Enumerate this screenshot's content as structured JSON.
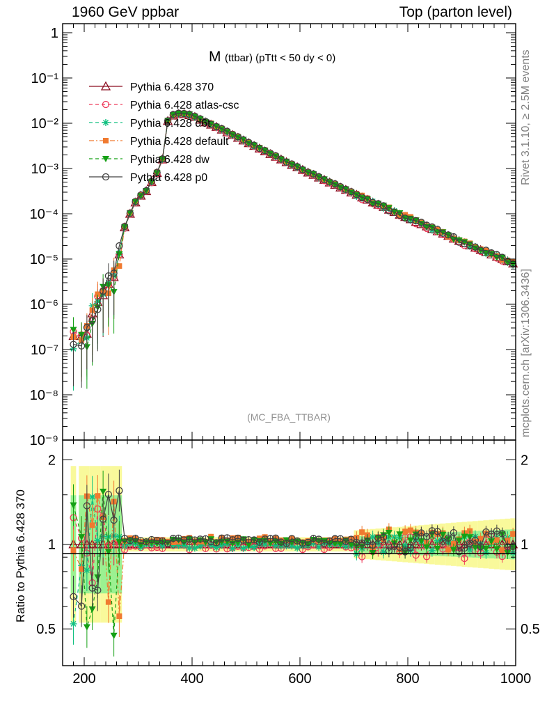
{
  "header": {
    "left": "1960 GeV ppbar",
    "right": "Top (parton level)"
  },
  "side_labels": {
    "rivet": "Rivet 3.1.10, ≥ 2.5M events",
    "mcplots": "mcplots.cern.ch [arXiv:1306.3436]"
  },
  "chart_data": [
    {
      "type": "line",
      "title_main": "M",
      "title_sub": "(ttbar) (pTtt < 50 dy < 0)",
      "watermark": "(MC_FBA_TTBAR)",
      "xlim": [
        160,
        1000
      ],
      "ylim_log10": [
        -9,
        0.2
      ],
      "yscale": "log",
      "x_ticks": [
        "200",
        "400",
        "600",
        "800",
        "1000"
      ],
      "y_ticks": [
        "1",
        "10⁻¹",
        "10⁻²",
        "10⁻³",
        "10⁻⁴",
        "10⁻⁵",
        "10⁻⁶",
        "10⁻⁷",
        "10⁻⁸",
        "10⁻⁹"
      ],
      "legend_position": "top-left",
      "series": [
        {
          "name": "Pythia 6.428 370",
          "color": "#8b0a1e",
          "marker": "triangle-open",
          "style": "solid",
          "role": "reference"
        },
        {
          "name": "Pythia 6.428 atlas-csc",
          "color": "#ee3a5a",
          "marker": "circle-open",
          "style": "dashed"
        },
        {
          "name": "Pythia 6.428 d6t",
          "color": "#10c080",
          "marker": "star",
          "style": "dashed"
        },
        {
          "name": "Pythia 6.428 default",
          "color": "#f07a30",
          "marker": "square",
          "style": "dashdot"
        },
        {
          "name": "Pythia 6.428 dw",
          "color": "#15a015",
          "marker": "triangle-down",
          "style": "dashed"
        },
        {
          "name": "Pythia 6.428 p0",
          "color": "#404040",
          "marker": "circle-open",
          "style": "solid"
        }
      ],
      "x": [
        180,
        195,
        205,
        215,
        225,
        235,
        245,
        255,
        265,
        275,
        285,
        295,
        305,
        315,
        325,
        335,
        345,
        355,
        365,
        375,
        385,
        395,
        405,
        415,
        425,
        435,
        445,
        455,
        465,
        475,
        485,
        495,
        505,
        515,
        525,
        535,
        545,
        555,
        565,
        575,
        585,
        595,
        605,
        615,
        625,
        635,
        645,
        655,
        665,
        675,
        685,
        695,
        705,
        715,
        725,
        735,
        745,
        755,
        765,
        775,
        785,
        795,
        805,
        815,
        825,
        835,
        845,
        855,
        865,
        875,
        885,
        895,
        905,
        915,
        925,
        935,
        945,
        955,
        965,
        975,
        985,
        995
      ],
      "reference_log10": [
        -6.7,
        -6.7,
        -6.65,
        -6.2,
        -5.95,
        -5.8,
        -5.55,
        -5.4,
        -4.9,
        -4.3,
        -4.0,
        -3.75,
        -3.6,
        -3.5,
        -3.3,
        -3.1,
        -2.8,
        -1.95,
        -1.83,
        -1.8,
        -1.8,
        -1.82,
        -1.86,
        -1.92,
        -1.98,
        -2.03,
        -2.08,
        -2.14,
        -2.2,
        -2.26,
        -2.32,
        -2.38,
        -2.44,
        -2.5,
        -2.56,
        -2.62,
        -2.68,
        -2.74,
        -2.8,
        -2.86,
        -2.92,
        -2.97,
        -3.03,
        -3.09,
        -3.14,
        -3.2,
        -3.25,
        -3.31,
        -3.36,
        -3.42,
        -3.47,
        -3.53,
        -3.58,
        -3.64,
        -3.69,
        -3.75,
        -3.8,
        -3.85,
        -3.91,
        -3.96,
        -4.02,
        -4.07,
        -4.12,
        -4.18,
        -4.23,
        -4.28,
        -4.34,
        -4.39,
        -4.44,
        -4.49,
        -4.55,
        -4.6,
        -4.65,
        -4.7,
        -4.75,
        -4.8,
        -4.85,
        -4.9,
        -4.95,
        -5.0,
        -5.05,
        -5.1
      ]
    },
    {
      "type": "line",
      "ylabel": "Ratio to Pythia 6.428 370",
      "xlim": [
        160,
        1000
      ],
      "ylim": [
        0.37,
        2.35
      ],
      "y_ticks": [
        "0.5",
        "1",
        "2"
      ],
      "x_ticks": [
        "200",
        "400",
        "600",
        "800",
        "1000"
      ]
    }
  ]
}
